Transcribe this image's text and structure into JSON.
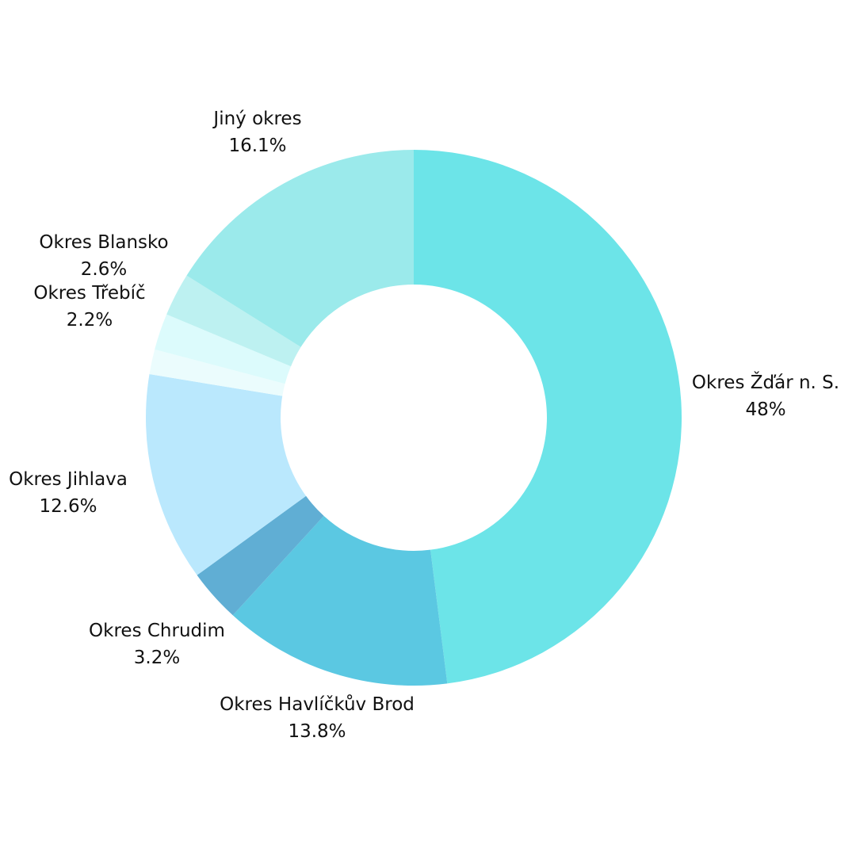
{
  "chart_data": {
    "type": "pie",
    "donut": true,
    "start": "top",
    "direction": "clockwise",
    "slices": [
      {
        "label": "Okres Žďár n. S.",
        "value": 48,
        "value_label": "48%",
        "color": "#6ce4e8"
      },
      {
        "label": "Okres Havlíčkův Brod",
        "value": 13.8,
        "value_label": "13.8%",
        "color": "#5bc8e2"
      },
      {
        "label": "Okres Chrudim",
        "value": 3.2,
        "value_label": "3.2%",
        "color": "#60aed4"
      },
      {
        "label": "Okres Jihlava",
        "value": 12.6,
        "value_label": "12.6%",
        "color": "#bae8fd"
      },
      {
        "label": "",
        "value": 1.5,
        "value_label": "",
        "color": "#ebfcfd"
      },
      {
        "label": "Okres Třebíč",
        "value": 2.2,
        "value_label": "2.2%",
        "color": "#dcfbfc"
      },
      {
        "label": "Okres Blansko",
        "value": 2.6,
        "value_label": "2.6%",
        "color": "#bdf1f1"
      },
      {
        "label": "Jiný okres",
        "value": 16.1,
        "value_label": "16.1%",
        "color": "#9beaeb"
      }
    ]
  }
}
